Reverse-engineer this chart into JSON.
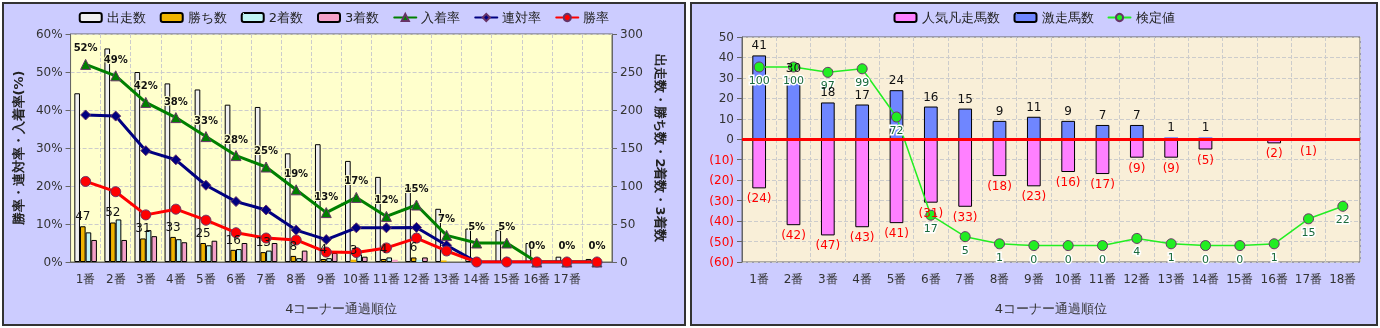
{
  "chart_data": [
    {
      "type": "bar",
      "xlabel": "4コーナー通過順位",
      "ylabel": "勝率・連対率・入着率(%)",
      "y2label": "出走数・勝ち数・2着数・3着数",
      "legend": "top",
      "grid": true,
      "categories": [
        "1番",
        "2番",
        "3番",
        "4番",
        "5番",
        "6番",
        "7番",
        "8番",
        "9番",
        "10番",
        "11番",
        "12番",
        "13番",
        "14番",
        "15番",
        "16番",
        "17番",
        null
      ],
      "ylim": [
        0,
        60
      ],
      "yticks": [
        {
          "value": 0,
          "label": "0%"
        },
        {
          "value": 10,
          "label": "10%"
        },
        {
          "value": 20,
          "label": "20%"
        },
        {
          "value": 30,
          "label": "30%"
        },
        {
          "value": 40,
          "label": "40%"
        },
        {
          "value": 50,
          "label": "50%"
        },
        {
          "value": 60,
          "label": "60%"
        }
      ],
      "y2lim": [
        0,
        300
      ],
      "y2ticks": [
        0,
        50,
        100,
        150,
        200,
        250,
        300
      ],
      "series": [
        {
          "name": "出走数",
          "color": "#f0f0f0",
          "axis": "y2",
          "values": [
            222,
            281,
            250,
            235,
            227,
            207,
            204,
            143,
            155,
            133,
            112,
            98,
            70,
            44,
            42,
            25,
            7,
            4
          ]
        },
        {
          "name": "勝ち数",
          "color": "#f0b400",
          "axis": "y2",
          "values": [
            47,
            52,
            31,
            33,
            25,
            16,
            13,
            8,
            4,
            3,
            4,
            6,
            2,
            0,
            0,
            0,
            0,
            0
          ],
          "value_labels": [
            "47",
            "52",
            "31",
            "33",
            "25",
            "16",
            "13",
            "8",
            "4",
            "3",
            "4",
            "6",
            null,
            null,
            null,
            null,
            null,
            null
          ]
        },
        {
          "name": "2着数",
          "color": "#c0f4f4",
          "axis": "y2",
          "values": [
            39,
            56,
            42,
            30,
            22,
            17,
            15,
            5,
            5,
            10,
            6,
            3,
            null,
            0,
            0,
            0,
            0,
            0
          ]
        },
        {
          "name": "3着数",
          "color": "#f4a0c8",
          "axis": "y2",
          "values": [
            29,
            29,
            34,
            26,
            28,
            25,
            25,
            15,
            12,
            7,
            3,
            6,
            null,
            0,
            0,
            0,
            0,
            0
          ]
        },
        {
          "name": "入着率",
          "type": "line",
          "color": "#008000",
          "marker": "triangle",
          "line_style": "solid",
          "values": [
            52,
            49,
            42,
            38,
            33,
            28,
            25,
            19,
            13,
            17,
            12,
            15,
            7,
            5,
            5,
            0,
            0,
            0
          ],
          "value_labels": [
            "52%",
            "49%",
            "42%",
            "38%",
            "33%",
            "28%",
            "25%",
            "19%",
            "13%",
            "17%",
            "12%",
            "15%",
            "7%",
            "5%",
            "5%",
            "0%",
            "0%",
            "0%"
          ]
        },
        {
          "name": "連対率",
          "type": "line",
          "color": "#000080",
          "marker": "diamond",
          "line_style": "solid",
          "values": [
            38.7,
            38.4,
            29.3,
            26.9,
            20.2,
            15.9,
            13.7,
            8.4,
            5.9,
            9.0,
            9.0,
            9.1,
            4.4,
            0,
            0,
            0,
            0,
            0
          ]
        },
        {
          "name": "勝率",
          "type": "line",
          "color": "#ff0000",
          "marker": "circle",
          "line_style": "solid",
          "values": [
            21.2,
            18.5,
            12.4,
            13.9,
            11.0,
            7.7,
            6.3,
            5.8,
            2.6,
            2.5,
            3.7,
            6.3,
            2.9,
            0,
            0,
            0,
            0,
            0
          ]
        }
      ]
    },
    {
      "type": "bar",
      "xlabel": "4コーナー通過順位",
      "legend": "top",
      "grid": true,
      "stacked": true,
      "categories": [
        "1番",
        "2番",
        "3番",
        "4番",
        "5番",
        "6番",
        "7番",
        "8番",
        "9番",
        "10番",
        "11番",
        "12番",
        "13番",
        "14番",
        "15番",
        "16番",
        "17番",
        "18番"
      ],
      "ylim": [
        -60,
        50
      ],
      "yticks": [
        {
          "value": -60,
          "label": "(60)"
        },
        {
          "value": -50,
          "label": "(50)"
        },
        {
          "value": -40,
          "label": "(40)"
        },
        {
          "value": -30,
          "label": "(30)"
        },
        {
          "value": -20,
          "label": "(20)"
        },
        {
          "value": -10,
          "label": "(10)"
        },
        0,
        10,
        20,
        30,
        40,
        50
      ],
      "y2lim": [
        -9.2,
        116.8
      ],
      "ref_lines": [
        {
          "axis": "y",
          "value": 0,
          "color": "#ff0000"
        }
      ],
      "series": [
        {
          "name": "人気凡走馬数",
          "color": "#ff80ff",
          "values": [
            -24,
            -42,
            -47,
            -43,
            -41,
            -31,
            -33,
            -18,
            -23,
            -16,
            -17,
            -9,
            -9,
            -5,
            null,
            -2,
            -1,
            null
          ],
          "value_labels": [
            "(24)",
            "(42)",
            "(47)",
            "(43)",
            "(41)",
            "(31)",
            "(33)",
            "(18)",
            "(23)",
            "(16)",
            "(17)",
            "(9)",
            "(9)",
            "(5)",
            null,
            "(2)",
            "(1)",
            null
          ]
        },
        {
          "name": "激走馬数",
          "color": "#6f86ff",
          "values": [
            41,
            30,
            18,
            17,
            24,
            16,
            15,
            9,
            11,
            9,
            7,
            7,
            1,
            1,
            null,
            null,
            null,
            null
          ],
          "value_labels": [
            "41",
            "30",
            "18",
            "17",
            "24",
            "16",
            "15",
            "9",
            "11",
            "9",
            "7",
            "7",
            "1",
            "1",
            null,
            null,
            null,
            null
          ]
        },
        {
          "name": "検定値",
          "type": "line",
          "color": "#22ee22",
          "marker": "circle",
          "line_style": "solid",
          "axis": "y2",
          "values": [
            100,
            100,
            97,
            99,
            72,
            17,
            5,
            1,
            0,
            0,
            0,
            4,
            1,
            0,
            0,
            1,
            15,
            22
          ],
          "value_labels": [
            "100",
            "100",
            "97",
            "99",
            "72",
            "17",
            "5",
            "1",
            "0",
            "0",
            "0",
            "4",
            "1",
            "0",
            "0",
            "1",
            "15",
            "22"
          ]
        }
      ]
    }
  ]
}
